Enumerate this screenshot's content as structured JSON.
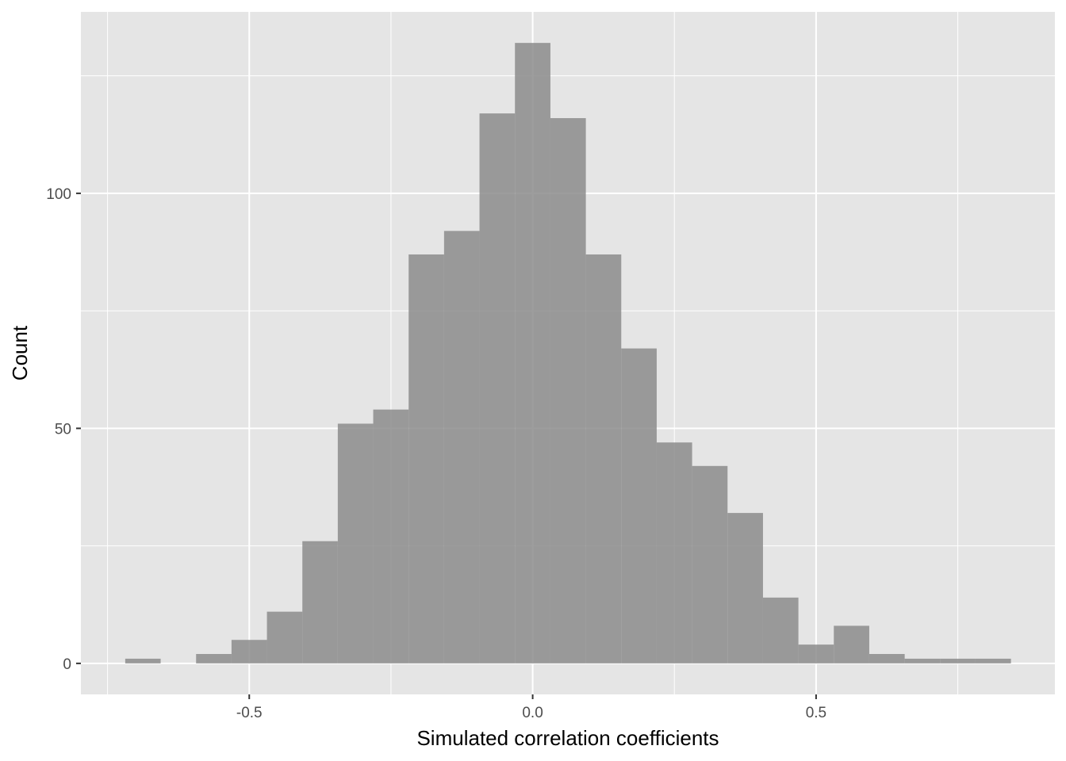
{
  "chart_data": {
    "type": "bar",
    "title": "",
    "xlabel": "Simulated correlation coefficients",
    "ylabel": "Count",
    "bin_width": 0.0625,
    "bins": [
      {
        "start": -0.7188,
        "end": -0.6563,
        "count": 1
      },
      {
        "start": -0.6563,
        "end": -0.5938,
        "count": 0
      },
      {
        "start": -0.5938,
        "end": -0.5313,
        "count": 2
      },
      {
        "start": -0.5313,
        "end": -0.4688,
        "count": 5
      },
      {
        "start": -0.4688,
        "end": -0.4063,
        "count": 11
      },
      {
        "start": -0.4063,
        "end": -0.3438,
        "count": 26
      },
      {
        "start": -0.3438,
        "end": -0.2813,
        "count": 51
      },
      {
        "start": -0.2813,
        "end": -0.2188,
        "count": 54
      },
      {
        "start": -0.2188,
        "end": -0.1563,
        "count": 87
      },
      {
        "start": -0.1563,
        "end": -0.0938,
        "count": 92
      },
      {
        "start": -0.0938,
        "end": -0.0313,
        "count": 117
      },
      {
        "start": -0.0313,
        "end": 0.0313,
        "count": 132
      },
      {
        "start": 0.0313,
        "end": 0.0938,
        "count": 116
      },
      {
        "start": 0.0938,
        "end": 0.1563,
        "count": 87
      },
      {
        "start": 0.1563,
        "end": 0.2188,
        "count": 67
      },
      {
        "start": 0.2188,
        "end": 0.2813,
        "count": 47
      },
      {
        "start": 0.2813,
        "end": 0.3438,
        "count": 42
      },
      {
        "start": 0.3438,
        "end": 0.4063,
        "count": 32
      },
      {
        "start": 0.4063,
        "end": 0.4688,
        "count": 14
      },
      {
        "start": 0.4688,
        "end": 0.5313,
        "count": 4
      },
      {
        "start": 0.5313,
        "end": 0.5938,
        "count": 8
      },
      {
        "start": 0.5938,
        "end": 0.6563,
        "count": 2
      },
      {
        "start": 0.6563,
        "end": 0.7188,
        "count": 1
      },
      {
        "start": 0.7188,
        "end": 0.7813,
        "count": 1
      },
      {
        "start": 0.7813,
        "end": 0.8438,
        "count": 1
      }
    ],
    "xlim": [
      -0.797,
      0.9213
    ],
    "ylim": [
      -6.6,
      138.6
    ],
    "x_ticks": [
      {
        "value": -0.5,
        "label": "-0.5"
      },
      {
        "value": 0.0,
        "label": "0.0"
      },
      {
        "value": 0.5,
        "label": "0.5"
      }
    ],
    "x_minor_ticks": [
      -0.75,
      -0.25,
      0.25,
      0.75
    ],
    "y_ticks": [
      {
        "value": 0,
        "label": "0"
      },
      {
        "value": 50,
        "label": "50"
      },
      {
        "value": 100,
        "label": "100"
      }
    ],
    "y_minor_ticks": [
      25,
      75,
      125
    ],
    "grid": true,
    "legend": "none",
    "colors": {
      "panel": "#e5e5e5",
      "grid": "#ffffff",
      "bar": "#8c8c8c",
      "bar_opacity": 0.85,
      "tick_text": "#4d4d4d",
      "tick_mark": "#333333",
      "axis_title": "#000000"
    }
  }
}
